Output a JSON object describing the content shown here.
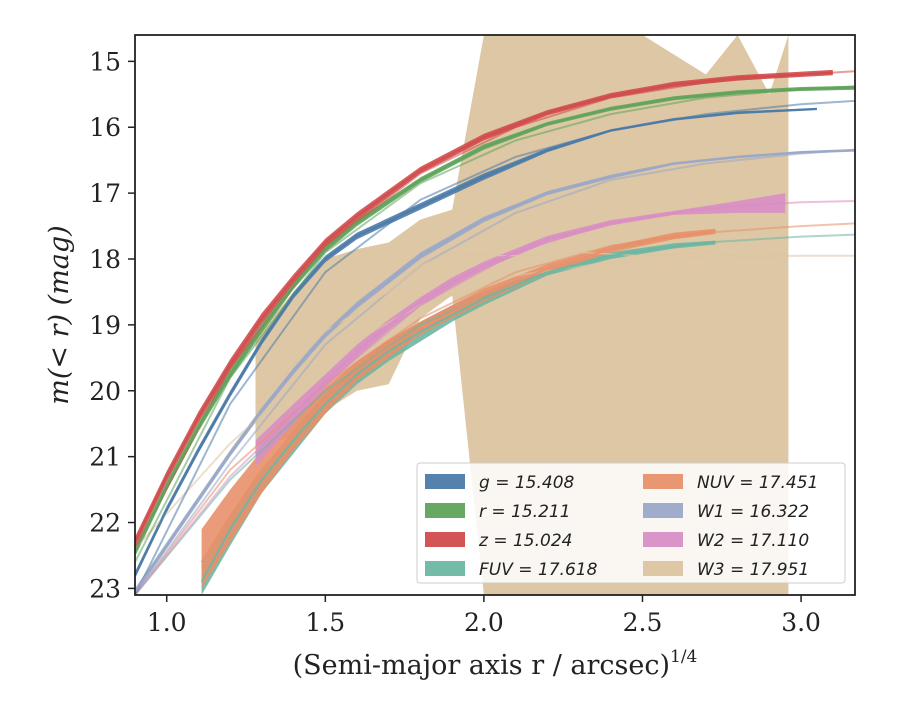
{
  "chart_data": {
    "type": "line",
    "title": "",
    "xlabel": "(Semi-major axis r / arcsec)",
    "xlabel_superscript": "1/4",
    "ylabel": "m(< r) (mag)",
    "xlim": [
      0.9,
      3.17
    ],
    "ylim": [
      23.1,
      14.6
    ],
    "y_inverted": true,
    "grid": false,
    "legend_placement": "lower-right",
    "x_ticks": [
      "1.0",
      "1.5",
      "2.0",
      "2.5",
      "3.0"
    ],
    "y_ticks": [
      "15",
      "16",
      "17",
      "18",
      "19",
      "20",
      "21",
      "22",
      "23"
    ],
    "series": [
      {
        "name": "g",
        "legend_label": "g = 15.408",
        "color": "#4c7ba8",
        "x": [
          0.9,
          1.0,
          1.1,
          1.2,
          1.3,
          1.4,
          1.5,
          1.6,
          1.8,
          2.0,
          2.2,
          2.4,
          2.6,
          2.8,
          3.05
        ],
        "y": [
          22.8,
          21.8,
          20.9,
          20.05,
          19.25,
          18.55,
          18.0,
          17.65,
          17.2,
          16.75,
          16.35,
          16.05,
          15.88,
          15.78,
          15.72
        ],
        "y_lower": [
          22.75,
          21.75,
          20.85,
          20.0,
          19.2,
          18.5,
          17.95,
          17.6,
          17.15,
          16.7,
          16.32,
          16.03,
          15.86,
          15.76,
          15.71
        ],
        "y_upper": [
          22.85,
          21.85,
          20.95,
          20.1,
          19.3,
          18.6,
          18.05,
          17.7,
          17.25,
          16.8,
          16.38,
          16.07,
          15.9,
          15.8,
          15.74
        ],
        "model_x": [
          0.9,
          1.2,
          1.5,
          1.8,
          2.1,
          2.4,
          2.7,
          3.0,
          3.17
        ],
        "model_y": [
          23.1,
          20.2,
          18.2,
          17.1,
          16.45,
          16.05,
          15.8,
          15.65,
          15.6
        ]
      },
      {
        "name": "r",
        "legend_label": "r = 15.211",
        "color": "#5fa45b",
        "x": [
          0.9,
          1.0,
          1.1,
          1.2,
          1.3,
          1.4,
          1.5,
          1.6,
          1.8,
          2.0,
          2.2,
          2.4,
          2.6,
          2.8,
          3.0,
          3.17
        ],
        "y": [
          22.45,
          21.45,
          20.55,
          19.75,
          19.05,
          18.4,
          17.85,
          17.45,
          16.8,
          16.3,
          15.95,
          15.72,
          15.56,
          15.47,
          15.42,
          15.4
        ],
        "y_lower": [
          22.38,
          21.38,
          20.48,
          19.68,
          18.98,
          18.34,
          17.8,
          17.4,
          16.76,
          16.26,
          15.92,
          15.69,
          15.53,
          15.44,
          15.39,
          15.37
        ],
        "y_upper": [
          22.52,
          21.52,
          20.62,
          19.82,
          19.12,
          18.46,
          17.9,
          17.5,
          16.84,
          16.34,
          15.98,
          15.75,
          15.59,
          15.5,
          15.45,
          15.43
        ],
        "model_x": [
          0.9,
          1.2,
          1.5,
          1.8,
          2.1,
          2.4,
          2.7,
          3.0,
          3.17
        ],
        "model_y": [
          22.6,
          19.8,
          17.9,
          16.85,
          16.2,
          15.8,
          15.55,
          15.42,
          15.38
        ]
      },
      {
        "name": "z",
        "legend_label": "z = 15.024",
        "color": "#d14b4b",
        "x": [
          0.9,
          1.0,
          1.1,
          1.2,
          1.3,
          1.4,
          1.5,
          1.6,
          1.8,
          2.0,
          2.2,
          2.4,
          2.6,
          2.8,
          3.1
        ],
        "y": [
          22.3,
          21.3,
          20.4,
          19.6,
          18.9,
          18.3,
          17.75,
          17.35,
          16.65,
          16.15,
          15.78,
          15.52,
          15.35,
          15.25,
          15.17
        ],
        "y_lower": [
          22.22,
          21.22,
          20.32,
          19.52,
          18.82,
          18.23,
          17.69,
          17.29,
          16.6,
          16.1,
          15.74,
          15.48,
          15.31,
          15.21,
          15.13
        ],
        "y_upper": [
          22.38,
          21.38,
          20.48,
          19.68,
          18.98,
          18.37,
          17.81,
          17.41,
          16.7,
          16.2,
          15.82,
          15.56,
          15.39,
          15.29,
          15.21
        ],
        "model_x": [
          0.9,
          1.2,
          1.5,
          1.8,
          2.1,
          2.4,
          2.7,
          3.0,
          3.17
        ],
        "model_y": [
          22.4,
          19.65,
          17.8,
          16.7,
          16.0,
          15.55,
          15.32,
          15.2,
          15.15
        ]
      },
      {
        "name": "FUV",
        "legend_label": "FUV = 17.618",
        "color": "#6ab7a3",
        "x": [
          1.11,
          1.2,
          1.3,
          1.4,
          1.5,
          1.6,
          1.7,
          1.8,
          1.9,
          2.0,
          2.2,
          2.4,
          2.6,
          2.73
        ],
        "y": [
          22.9,
          22.1,
          21.35,
          20.75,
          20.2,
          19.75,
          19.4,
          19.1,
          18.85,
          18.6,
          18.2,
          17.95,
          17.8,
          17.75
        ],
        "y_lower": [
          22.6,
          21.9,
          21.2,
          20.6,
          20.05,
          19.6,
          19.25,
          18.95,
          18.7,
          18.5,
          18.15,
          17.9,
          17.76,
          17.72
        ],
        "y_upper": [
          23.1,
          22.35,
          21.55,
          20.95,
          20.35,
          19.9,
          19.55,
          19.25,
          18.95,
          18.7,
          18.25,
          18.0,
          17.84,
          17.78
        ],
        "model_x": [
          0.9,
          1.2,
          1.5,
          1.8,
          2.1,
          2.4,
          2.7,
          3.0,
          3.17
        ],
        "model_y": [
          23.1,
          21.35,
          20.0,
          19.0,
          18.35,
          17.95,
          17.75,
          17.66,
          17.63
        ]
      },
      {
        "name": "NUV",
        "legend_label": "NUV = 17.451",
        "color": "#e8906a",
        "x": [
          1.11,
          1.2,
          1.3,
          1.4,
          1.5,
          1.6,
          1.7,
          1.8,
          1.9,
          2.0,
          2.2,
          2.4,
          2.6,
          2.73
        ],
        "y": [
          22.6,
          21.9,
          21.2,
          20.65,
          20.15,
          19.7,
          19.35,
          19.05,
          18.8,
          18.55,
          18.15,
          17.85,
          17.65,
          17.58
        ],
        "y_lower": [
          22.1,
          21.5,
          20.9,
          20.4,
          19.95,
          19.55,
          19.22,
          18.95,
          18.7,
          18.45,
          18.08,
          17.8,
          17.6,
          17.54
        ],
        "y_upper": [
          23.0,
          22.3,
          21.55,
          20.9,
          20.35,
          19.85,
          19.5,
          19.15,
          18.9,
          18.65,
          18.22,
          17.9,
          17.7,
          17.62
        ],
        "model_x": [
          0.9,
          1.2,
          1.5,
          1.8,
          2.1,
          2.4,
          2.7,
          3.0,
          3.17
        ],
        "model_y": [
          23.1,
          21.2,
          19.9,
          18.9,
          18.2,
          17.8,
          17.6,
          17.5,
          17.46
        ]
      },
      {
        "name": "W1",
        "legend_label": "W1 = 16.322",
        "color": "#9aa8c8",
        "x": [
          0.9,
          1.0,
          1.1,
          1.2,
          1.3,
          1.4,
          1.5,
          1.6,
          1.8,
          2.0,
          2.2,
          2.4,
          2.6,
          2.8,
          3.0,
          3.17
        ],
        "y": [
          23.05,
          22.35,
          21.65,
          20.95,
          20.3,
          19.7,
          19.15,
          18.7,
          17.95,
          17.4,
          17.0,
          16.75,
          16.55,
          16.45,
          16.38,
          16.35
        ],
        "y_lower": [
          23.0,
          22.3,
          21.6,
          20.9,
          20.25,
          19.65,
          19.1,
          18.65,
          17.9,
          17.36,
          16.97,
          16.72,
          16.53,
          16.43,
          16.36,
          16.33
        ],
        "y_upper": [
          23.1,
          22.4,
          21.7,
          21.0,
          20.35,
          19.75,
          19.2,
          18.75,
          18.0,
          17.44,
          17.03,
          16.78,
          16.57,
          16.47,
          16.4,
          16.37
        ],
        "model_x": [
          0.9,
          1.2,
          1.5,
          1.8,
          2.1,
          2.4,
          2.7,
          3.0,
          3.17
        ],
        "model_y": [
          23.1,
          21.1,
          19.3,
          18.1,
          17.3,
          16.8,
          16.55,
          16.4,
          16.34
        ]
      },
      {
        "name": "W2",
        "legend_label": "W2 = 17.110",
        "color": "#d98ec4",
        "x": [
          1.28,
          1.4,
          1.5,
          1.6,
          1.7,
          1.8,
          1.9,
          2.0,
          2.2,
          2.4,
          2.6,
          2.8,
          2.95
        ],
        "y": [
          20.95,
          20.35,
          19.85,
          19.4,
          19.0,
          18.65,
          18.35,
          18.1,
          17.7,
          17.45,
          17.3,
          17.2,
          17.15
        ],
        "y_lower": [
          20.75,
          20.2,
          19.75,
          19.3,
          18.92,
          18.58,
          18.28,
          18.04,
          17.65,
          17.41,
          17.27,
          17.12,
          17.0
        ],
        "y_upper": [
          21.15,
          20.5,
          19.95,
          19.5,
          19.08,
          18.72,
          18.42,
          18.16,
          17.75,
          17.49,
          17.33,
          17.3,
          17.3
        ],
        "model_x": [
          0.9,
          1.2,
          1.5,
          1.8,
          2.1,
          2.4,
          2.7,
          3.0,
          3.17
        ],
        "model_y": [
          23.1,
          21.3,
          19.9,
          18.7,
          17.9,
          17.45,
          17.22,
          17.14,
          17.12
        ]
      },
      {
        "name": "W3",
        "legend_label": "W3 = 17.951",
        "color": "#dcc4a0",
        "x": [
          1.28,
          1.4,
          1.5,
          1.6,
          1.7,
          1.8,
          1.9,
          2.0,
          2.1,
          2.3,
          2.5,
          2.7,
          2.8,
          2.9,
          2.96
        ],
        "y": [
          20.2,
          19.6,
          19.1,
          18.8,
          18.5,
          18.1,
          17.9,
          17.95,
          17.95,
          17.9,
          17.95,
          17.9,
          17.95,
          17.95,
          17.95
        ],
        "y_lower": [
          19.2,
          18.5,
          18.0,
          17.85,
          17.75,
          17.4,
          17.25,
          14.6,
          14.6,
          14.6,
          14.6,
          15.2,
          14.6,
          15.5,
          14.6
        ],
        "y_upper": [
          20.85,
          20.7,
          20.3,
          20.0,
          19.9,
          18.9,
          18.55,
          23.1,
          23.1,
          23.1,
          23.1,
          23.1,
          23.1,
          23.1,
          23.1
        ],
        "model_x": [
          0.9,
          1.2,
          1.5,
          1.8,
          2.1,
          2.4,
          2.7,
          3.0,
          3.17
        ],
        "model_y": [
          22.4,
          20.8,
          19.5,
          18.7,
          18.25,
          18.05,
          17.97,
          17.95,
          17.95
        ]
      }
    ]
  }
}
